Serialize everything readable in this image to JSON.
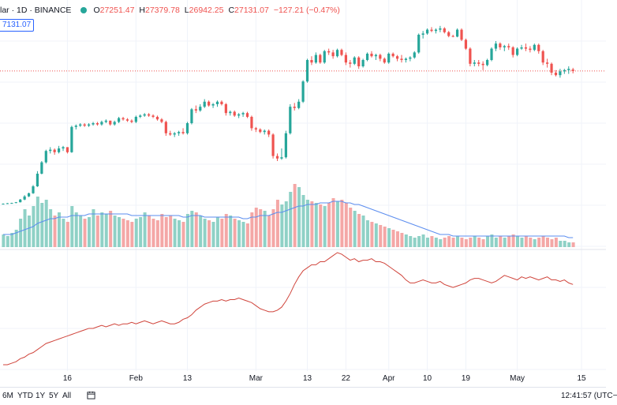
{
  "legend": {
    "symbol": "lar · 1D · BINANCE",
    "o_label": "O",
    "o_value": "27251.47",
    "h_label": "H",
    "h_value": "27379.78",
    "l_label": "L",
    "l_value": "26942.25",
    "c_label": "C",
    "c_value": "27131.07",
    "change": "−127.21 (−0.47%)"
  },
  "price_tag": "7131.07",
  "colors": {
    "up": "#26a69a",
    "down": "#ef5350",
    "volume_up": "#8fd1c6",
    "volume_down": "#f4a7a6",
    "volume_ma": "#5b8def",
    "indicator": "#d0453c",
    "grid": "#f0f3fa",
    "accent": "#2962ff"
  },
  "bottom_bar": {
    "ranges": [
      "6M",
      "YTD",
      "1Y",
      "5Y",
      "All"
    ],
    "calendar_icon": "calendar-range-icon",
    "clock": "12:41:57 (UTC−"
  },
  "chart_data": {
    "type": "candlestick",
    "x_ticks": [
      {
        "i": 15,
        "label": "16"
      },
      {
        "i": 31,
        "label": "Feb"
      },
      {
        "i": 43,
        "label": "13"
      },
      {
        "i": 59,
        "label": "Mar"
      },
      {
        "i": 71,
        "label": "13"
      },
      {
        "i": 80,
        "label": "22"
      },
      {
        "i": 90,
        "label": "Apr"
      },
      {
        "i": 99,
        "label": "10"
      },
      {
        "i": 108,
        "label": "19"
      },
      {
        "i": 120,
        "label": "May"
      },
      {
        "i": 135,
        "label": "15"
      }
    ],
    "last_close_price": 27131.07,
    "price_range": [
      16500,
      31500
    ],
    "candles": [
      [
        16610,
        16650,
        16590,
        16620
      ],
      [
        16620,
        16680,
        16600,
        16660
      ],
      [
        16660,
        16700,
        16640,
        16680
      ],
      [
        16680,
        16760,
        16660,
        16740
      ],
      [
        16740,
        17000,
        16720,
        16950
      ],
      [
        16950,
        17300,
        16900,
        17200
      ],
      [
        17200,
        17500,
        17150,
        17450
      ],
      [
        17450,
        18100,
        17400,
        18000
      ],
      [
        18000,
        19200,
        17950,
        19000
      ],
      [
        19000,
        20000,
        18950,
        19900
      ],
      [
        19900,
        20900,
        19800,
        20800
      ],
      [
        20800,
        21100,
        20600,
        20900
      ],
      [
        20900,
        21000,
        20500,
        20700
      ],
      [
        20700,
        21200,
        20600,
        21000
      ],
      [
        21000,
        21200,
        20800,
        21100
      ],
      [
        21100,
        21100,
        20600,
        20700
      ],
      [
        20700,
        22800,
        20650,
        22700
      ],
      [
        22700,
        22900,
        22500,
        22800
      ],
      [
        22800,
        23000,
        22700,
        22900
      ],
      [
        22900,
        23000,
        22700,
        22800
      ],
      [
        22800,
        23000,
        22700,
        22900
      ],
      [
        22900,
        23100,
        22800,
        23000
      ],
      [
        23000,
        23100,
        22800,
        22900
      ],
      [
        22900,
        23200,
        22800,
        23100
      ],
      [
        23100,
        23300,
        23000,
        23200
      ],
      [
        23200,
        23200,
        22800,
        22900
      ],
      [
        22900,
        23200,
        22800,
        23100
      ],
      [
        23100,
        23500,
        23000,
        23400
      ],
      [
        23400,
        23500,
        23200,
        23300
      ],
      [
        23300,
        23400,
        23100,
        23200
      ],
      [
        23200,
        23300,
        23000,
        23100
      ],
      [
        23100,
        23600,
        23000,
        23500
      ],
      [
        23500,
        23700,
        23400,
        23600
      ],
      [
        23600,
        23800,
        23500,
        23700
      ],
      [
        23700,
        23800,
        23500,
        23600
      ],
      [
        23600,
        23700,
        23400,
        23500
      ],
      [
        23500,
        23600,
        23200,
        23300
      ],
      [
        23300,
        23400,
        23000,
        23100
      ],
      [
        23100,
        23200,
        22000,
        22200
      ],
      [
        22200,
        22400,
        22000,
        22100
      ],
      [
        22100,
        22300,
        21900,
        22200
      ],
      [
        22200,
        22400,
        22000,
        22300
      ],
      [
        22300,
        22600,
        22100,
        22200
      ],
      [
        22200,
        23100,
        22100,
        23000
      ],
      [
        23000,
        24200,
        22900,
        24100
      ],
      [
        24100,
        24400,
        23800,
        24000
      ],
      [
        24000,
        24500,
        23900,
        24300
      ],
      [
        24300,
        24900,
        24200,
        24700
      ],
      [
        24700,
        24800,
        24300,
        24400
      ],
      [
        24400,
        24600,
        24200,
        24500
      ],
      [
        24500,
        24800,
        24300,
        24700
      ],
      [
        24700,
        24800,
        24400,
        24500
      ],
      [
        24500,
        24600,
        23600,
        23800
      ],
      [
        23800,
        24000,
        23600,
        23900
      ],
      [
        23900,
        24000,
        23500,
        23600
      ],
      [
        23600,
        23800,
        23400,
        23700
      ],
      [
        23700,
        23900,
        23500,
        23800
      ],
      [
        23800,
        23900,
        23400,
        23500
      ],
      [
        23500,
        23600,
        22400,
        22600
      ],
      [
        22600,
        22700,
        22300,
        22500
      ],
      [
        22500,
        22600,
        22200,
        22300
      ],
      [
        22300,
        22500,
        22100,
        22400
      ],
      [
        22400,
        22500,
        21900,
        22100
      ],
      [
        22100,
        22200,
        20200,
        20400
      ],
      [
        20400,
        20600,
        20000,
        20200
      ],
      [
        20200,
        21000,
        20100,
        20300
      ],
      [
        20300,
        22400,
        20200,
        22200
      ],
      [
        22200,
        24500,
        22100,
        24300
      ],
      [
        24300,
        24600,
        24000,
        24200
      ],
      [
        24200,
        24900,
        24100,
        24700
      ],
      [
        24700,
        26400,
        24600,
        26300
      ],
      [
        26300,
        28100,
        26200,
        28000
      ],
      [
        28000,
        28300,
        27600,
        27800
      ],
      [
        27800,
        28600,
        27700,
        28400
      ],
      [
        28400,
        28500,
        27700,
        27800
      ],
      [
        27800,
        28800,
        27700,
        28700
      ],
      [
        28700,
        28900,
        28400,
        28600
      ],
      [
        28600,
        28800,
        28100,
        28300
      ],
      [
        28300,
        28900,
        28200,
        28800
      ],
      [
        28800,
        28900,
        28300,
        28400
      ],
      [
        28400,
        28600,
        27600,
        27800
      ],
      [
        27800,
        28000,
        27400,
        27700
      ],
      [
        27700,
        28300,
        27600,
        28200
      ],
      [
        28200,
        28300,
        27300,
        27500
      ],
      [
        27500,
        28100,
        27400,
        28000
      ],
      [
        28000,
        28600,
        27900,
        28500
      ],
      [
        28500,
        28700,
        28200,
        28300
      ],
      [
        28300,
        28500,
        28000,
        28400
      ],
      [
        28400,
        28500,
        27900,
        28100
      ],
      [
        28100,
        28200,
        27700,
        27800
      ],
      [
        27800,
        28600,
        27700,
        28500
      ],
      [
        28500,
        28600,
        28200,
        28300
      ],
      [
        28300,
        28400,
        27900,
        28100
      ],
      [
        28100,
        28400,
        27800,
        28000
      ],
      [
        28000,
        28200,
        27800,
        28100
      ],
      [
        28100,
        28300,
        27900,
        28200
      ],
      [
        28200,
        28700,
        28100,
        28600
      ],
      [
        28600,
        30100,
        28500,
        30000
      ],
      [
        30000,
        30300,
        29700,
        30100
      ],
      [
        30100,
        30500,
        30000,
        30400
      ],
      [
        30400,
        30600,
        30200,
        30300
      ],
      [
        30300,
        30500,
        30100,
        30400
      ],
      [
        30400,
        30700,
        30200,
        30500
      ],
      [
        30500,
        30600,
        30100,
        30200
      ],
      [
        30200,
        30300,
        29800,
        29900
      ],
      [
        29900,
        30000,
        29800,
        29850
      ],
      [
        29850,
        30500,
        29800,
        30400
      ],
      [
        30400,
        30500,
        29500,
        29600
      ],
      [
        29600,
        29700,
        28800,
        28900
      ],
      [
        28900,
        29000,
        27500,
        27700
      ],
      [
        27700,
        28000,
        27500,
        27800
      ],
      [
        27800,
        28000,
        27500,
        27700
      ],
      [
        27700,
        27900,
        27200,
        27600
      ],
      [
        27600,
        28100,
        27500,
        28000
      ],
      [
        28000,
        29000,
        27900,
        28900
      ],
      [
        28900,
        29500,
        28700,
        29300
      ],
      [
        29300,
        29400,
        28800,
        29000
      ],
      [
        29000,
        29200,
        28700,
        29100
      ],
      [
        29100,
        29300,
        28800,
        29000
      ],
      [
        29000,
        29100,
        28200,
        28400
      ],
      [
        28400,
        29000,
        28300,
        28900
      ],
      [
        28900,
        29200,
        28800,
        29000
      ],
      [
        29000,
        29300,
        28700,
        28900
      ],
      [
        28900,
        29100,
        28600,
        28800
      ],
      [
        28800,
        29300,
        28700,
        29200
      ],
      [
        29200,
        29300,
        28500,
        28700
      ],
      [
        28700,
        28800,
        27600,
        27800
      ],
      [
        27800,
        28100,
        27400,
        27700
      ],
      [
        27700,
        27800,
        26800,
        27000
      ],
      [
        27000,
        27200,
        26700,
        26800
      ],
      [
        26800,
        27300,
        26600,
        27100
      ],
      [
        27100,
        27300,
        26900,
        27200
      ],
      [
        27200,
        27500,
        26900,
        27300
      ],
      [
        27251.47,
        27379.78,
        26942.25,
        27131.07
      ]
    ],
    "volume": [
      8,
      7,
      9,
      11,
      18,
      24,
      20,
      26,
      32,
      28,
      30,
      24,
      20,
      22,
      18,
      16,
      26,
      22,
      20,
      18,
      19,
      24,
      20,
      22,
      21,
      23,
      20,
      19,
      18,
      17,
      16,
      18,
      19,
      22,
      20,
      18,
      17,
      21,
      19,
      20,
      18,
      17,
      16,
      21,
      23,
      22,
      20,
      18,
      17,
      16,
      19,
      18,
      21,
      20,
      18,
      17,
      16,
      15,
      22,
      25,
      24,
      23,
      20,
      24,
      30,
      27,
      29,
      35,
      40,
      38,
      33,
      30,
      29,
      28,
      27,
      26,
      28,
      31,
      29,
      30,
      28,
      25,
      23,
      21,
      20,
      17,
      16,
      15,
      14,
      13,
      12,
      11,
      10,
      9,
      8,
      7,
      6,
      7,
      8,
      6,
      7,
      6,
      5,
      6,
      7,
      6,
      7,
      6,
      5,
      6,
      7,
      6,
      5,
      7,
      8,
      6,
      7,
      6,
      7,
      8,
      7,
      6,
      7,
      6,
      5,
      6,
      7,
      6,
      5,
      6,
      4,
      4,
      3,
      3
    ],
    "volume_ma": [
      8,
      8,
      8,
      9,
      10,
      11,
      12,
      13,
      15,
      16,
      17,
      18,
      18,
      19,
      19,
      19,
      20,
      20,
      20,
      20,
      21,
      21,
      21,
      21,
      21,
      21,
      21,
      21,
      21,
      21,
      20,
      20,
      20,
      20,
      20,
      20,
      20,
      20,
      20,
      20,
      20,
      20,
      19,
      19,
      20,
      20,
      20,
      19,
      19,
      19,
      19,
      19,
      19,
      19,
      19,
      19,
      18,
      18,
      19,
      19,
      20,
      20,
      20,
      21,
      22,
      22,
      23,
      24,
      25,
      26,
      26,
      27,
      27,
      27,
      28,
      28,
      28,
      29,
      29,
      29,
      28,
      28,
      27,
      27,
      26,
      25,
      24,
      23,
      22,
      21,
      20,
      19,
      18,
      17,
      16,
      15,
      14,
      13,
      12,
      11,
      10,
      9,
      8,
      8,
      8,
      7,
      7,
      7,
      7,
      7,
      7,
      7,
      7,
      7,
      7,
      7,
      7,
      7,
      7,
      7,
      7,
      7,
      7,
      7,
      7,
      7,
      7,
      7,
      7,
      7,
      7,
      7,
      6,
      6
    ],
    "indicator": [
      2,
      2,
      3,
      4,
      6,
      7,
      9,
      10,
      12,
      14,
      16,
      17,
      18,
      19,
      20,
      21,
      22,
      23,
      24,
      25,
      26,
      26,
      27,
      28,
      27,
      28,
      29,
      28,
      29,
      29,
      30,
      29,
      30,
      31,
      30,
      29,
      30,
      31,
      30,
      29,
      29,
      30,
      32,
      33,
      35,
      38,
      40,
      42,
      43,
      44,
      44,
      45,
      44,
      45,
      45,
      46,
      45,
      44,
      43,
      41,
      39,
      38,
      37,
      37,
      38,
      40,
      44,
      49,
      55,
      60,
      64,
      66,
      68,
      68,
      70,
      70,
      72,
      74,
      76,
      75,
      73,
      71,
      72,
      70,
      71,
      71,
      72,
      70,
      70,
      69,
      67,
      65,
      63,
      61,
      58,
      56,
      56,
      57,
      58,
      57,
      56,
      56,
      57,
      55,
      54,
      53,
      54,
      55,
      56,
      58,
      59,
      59,
      58,
      57,
      56,
      57,
      59,
      61,
      60,
      59,
      58,
      60,
      59,
      60,
      59,
      58,
      59,
      60,
      58,
      58,
      57,
      58,
      56,
      55
    ]
  }
}
